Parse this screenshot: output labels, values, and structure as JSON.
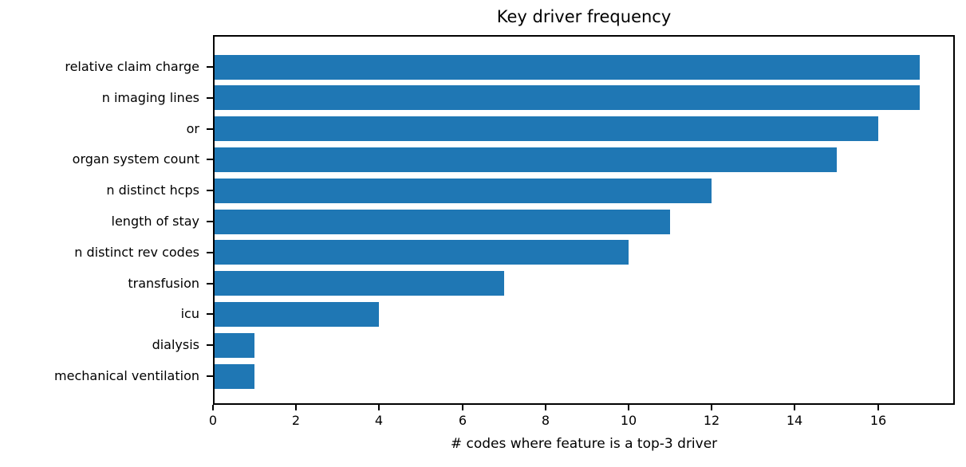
{
  "chart_data": {
    "type": "bar",
    "orientation": "horizontal",
    "title": "Key driver frequency",
    "xlabel": "# codes where feature is a top-3 driver",
    "ylabel": "",
    "categories": [
      "relative claim charge",
      "n imaging lines",
      "or",
      "organ system count",
      "n distinct hcps",
      "length of stay",
      "n distinct rev codes",
      "transfusion",
      "icu",
      "dialysis",
      "mechanical ventilation"
    ],
    "values": [
      17,
      17,
      16,
      15,
      12,
      11,
      10,
      7,
      4,
      1,
      1
    ],
    "xticks": [
      0,
      2,
      4,
      6,
      8,
      10,
      12,
      14,
      16
    ],
    "xlim": [
      0,
      17.85
    ],
    "bar_color": "#1f77b4",
    "spine_color": "#000000",
    "text_color": "#000000",
    "background_color": "#ffffff",
    "grid": false,
    "legend": "none"
  }
}
